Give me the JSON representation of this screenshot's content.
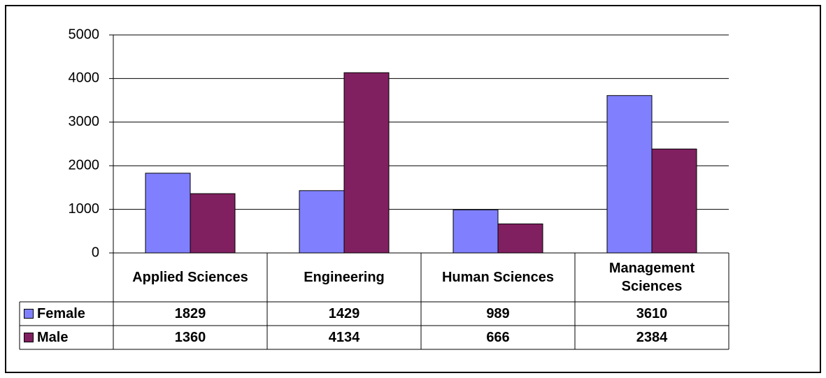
{
  "chart_data": {
    "type": "bar",
    "categories": [
      "Applied Sciences",
      "Engineering",
      "Human Sciences",
      "Management Sciences"
    ],
    "series": [
      {
        "name": "Female",
        "color": "#8080ff",
        "values": [
          1829,
          1429,
          989,
          3610
        ]
      },
      {
        "name": "Male",
        "color": "#802060",
        "values": [
          1360,
          4134,
          666,
          2384
        ]
      }
    ],
    "ylim": [
      0,
      5000
    ],
    "yticks": [
      0,
      1000,
      2000,
      3000,
      4000,
      5000
    ],
    "grid": true
  }
}
